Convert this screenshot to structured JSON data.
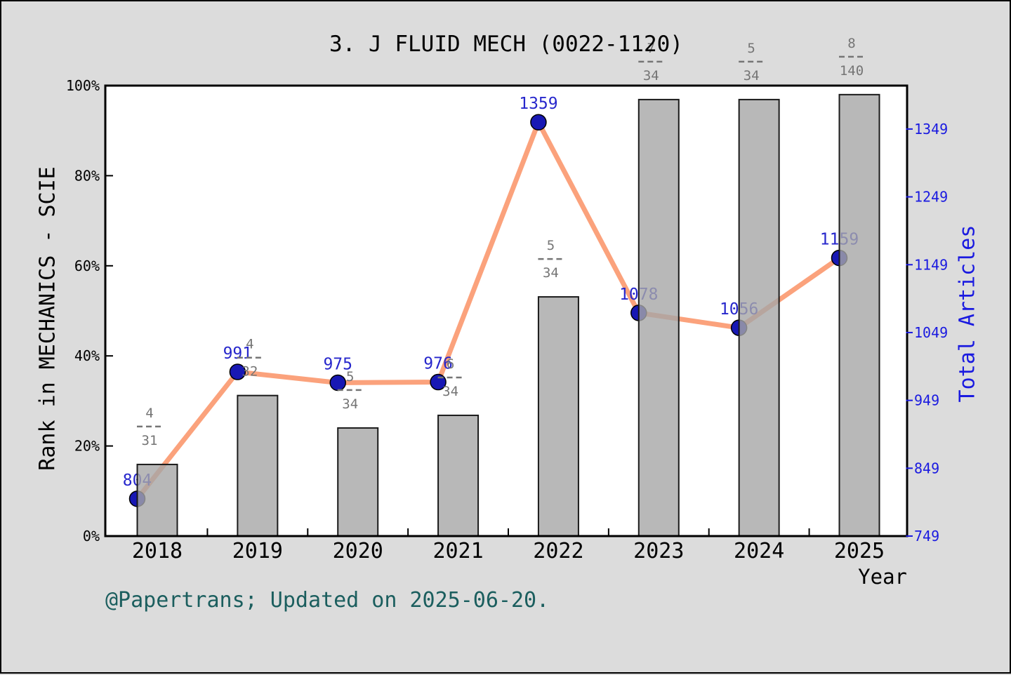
{
  "title": "3. J FLUID MECH (0022-1120)",
  "footer_credit": "@Papertrans; Updated on 2025-06-20.",
  "chart_data": {
    "type": "bar+line",
    "title": "3. J FLUID MECH (0022-1120)",
    "categories": [
      "2018",
      "2019",
      "2020",
      "2021",
      "2022",
      "2023",
      "2024",
      "2025"
    ],
    "xlabel": "Year",
    "grid": false,
    "legend": null,
    "y_left": {
      "label": "Rank in MECHANICS - SCIE",
      "ticks": [
        "0%",
        "20%",
        "40%",
        "60%",
        "80%",
        "100%"
      ],
      "range": [
        0,
        100
      ]
    },
    "y_right": {
      "label": "Total Articles",
      "ticks": [
        "749",
        "849",
        "949",
        "1049",
        "1149",
        "1249",
        "1349"
      ],
      "range": [
        749,
        1413
      ]
    },
    "series": [
      {
        "name": "Rank in category (bars, left % axis)",
        "type": "bar",
        "axis": "left",
        "values_pct": [
          15.9,
          31.2,
          24.0,
          26.8,
          53.1,
          96.9,
          96.9,
          98.0
        ],
        "rank_fractions": [
          "4/31",
          "4/32",
          "5/34",
          "6/34",
          "5/34",
          "7/34",
          "5/34",
          "8/140"
        ]
      },
      {
        "name": "Total Articles (line, right axis)",
        "type": "line",
        "axis": "right",
        "values": [
          804,
          991,
          975,
          976,
          1359,
          1078,
          1056,
          1159
        ]
      }
    ],
    "colors": {
      "page_bg": "#dcdcdc",
      "plot_bg": "#ffffff",
      "bar_fill": "rgba(166,166,166,0.8)",
      "bar_edge": "#1a1a1a",
      "line": "#fba27c",
      "marker_fill": "#1818b4",
      "marker_edge": "#000000",
      "value_label": "#2727cc",
      "right_axis": "#1a1ae0",
      "fraction_text": "#757575",
      "axis_text": "#000000",
      "footer_text": "#1b5e5e"
    }
  }
}
